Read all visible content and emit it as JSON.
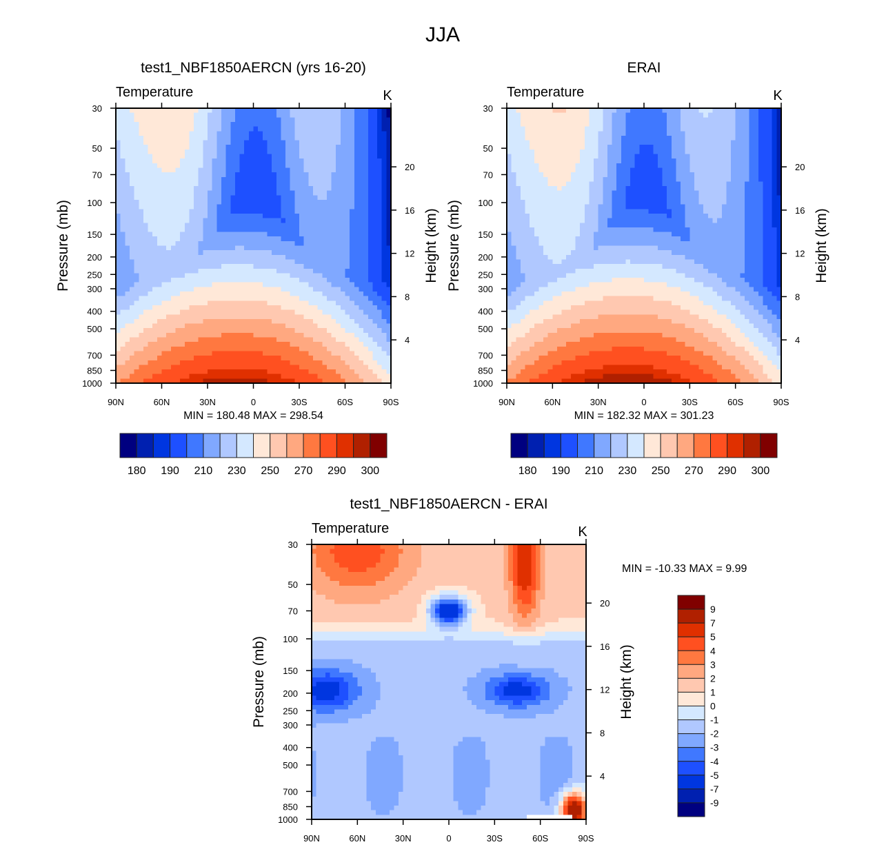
{
  "figure_title": "JJA",
  "colors": [
    "#000080",
    "#0020b0",
    "#0036e0",
    "#1e50ff",
    "#4078ff",
    "#80a8ff",
    "#b0c8ff",
    "#d4e8ff",
    "#ffe8d8",
    "#ffc8b0",
    "#ffa880",
    "#ff7840",
    "#ff5020",
    "#e03000",
    "#b02000",
    "#800000"
  ],
  "chart_data": [
    {
      "type": "heatmap",
      "title": "test1_NBF1850AERCN (yrs 16-20)",
      "subtitle": "Temperature",
      "units": "K",
      "ylabel": "Pressure (mb)",
      "y2label": "Height (km)",
      "xticks": [
        "90N",
        "60N",
        "30N",
        "0",
        "30S",
        "60S",
        "90S"
      ],
      "yticks": [
        "30",
        "50",
        "70",
        "100",
        "150",
        "200",
        "250",
        "300",
        "400",
        "500",
        "700",
        "850",
        "1000"
      ],
      "y2ticks": [
        "4",
        "8",
        "12",
        "16",
        "20"
      ],
      "stats": "MIN = 180.48  MAX = 298.54",
      "min": 180.48,
      "max": 298.54,
      "levels": [
        180,
        185,
        190,
        200,
        210,
        220,
        230,
        240,
        250,
        260,
        270,
        280,
        290,
        295,
        300
      ],
      "colorbar_labels": [
        "180",
        "190",
        "210",
        "230",
        "250",
        "270",
        "290",
        "300"
      ]
    },
    {
      "type": "heatmap",
      "title": "ERAI",
      "subtitle": "Temperature",
      "units": "K",
      "ylabel": "Pressure (mb)",
      "y2label": "Height (km)",
      "xticks": [
        "90N",
        "60N",
        "30N",
        "0",
        "30S",
        "60S",
        "90S"
      ],
      "yticks": [
        "30",
        "50",
        "70",
        "100",
        "150",
        "200",
        "250",
        "300",
        "400",
        "500",
        "700",
        "850",
        "1000"
      ],
      "y2ticks": [
        "4",
        "8",
        "12",
        "16",
        "20"
      ],
      "stats": "MIN = 182.32  MAX = 301.23",
      "min": 182.32,
      "max": 301.23,
      "levels": [
        180,
        185,
        190,
        200,
        210,
        220,
        230,
        240,
        250,
        260,
        270,
        280,
        290,
        295,
        300
      ],
      "colorbar_labels": [
        "180",
        "190",
        "210",
        "230",
        "250",
        "270",
        "290",
        "300"
      ]
    },
    {
      "type": "heatmap",
      "title": "test1_NBF1850AERCN - ERAI",
      "subtitle": "Temperature",
      "units": "K",
      "ylabel": "Pressure (mb)",
      "y2label": "Height (km)",
      "xticks": [
        "90N",
        "60N",
        "30N",
        "0",
        "30S",
        "60S",
        "90S"
      ],
      "yticks": [
        "30",
        "50",
        "70",
        "100",
        "150",
        "200",
        "250",
        "300",
        "400",
        "500",
        "700",
        "850",
        "1000"
      ],
      "y2ticks": [
        "4",
        "8",
        "12",
        "16",
        "20"
      ],
      "stats": "MIN = -10.33  MAX =   9.99",
      "min": -10.33,
      "max": 9.99,
      "levels": [
        -9,
        -7,
        -5,
        -4,
        -3,
        -2,
        -1,
        0,
        1,
        2,
        3,
        4,
        5,
        7,
        9
      ],
      "colorbar_labels": [
        "9",
        "7",
        "5",
        "4",
        "3",
        "2",
        "1",
        "0",
        "-1",
        "-2",
        "-3",
        "-4",
        "-5",
        "-7",
        "-9"
      ]
    }
  ]
}
